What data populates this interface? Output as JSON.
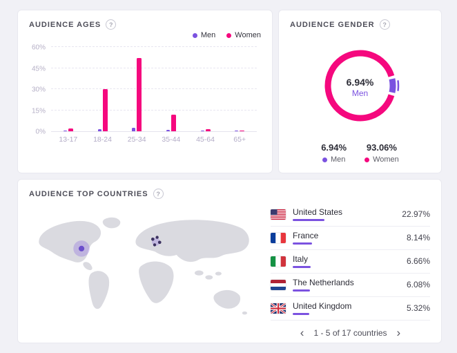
{
  "colors": {
    "men": "#7b52e0",
    "women": "#f5087e",
    "page_bg": "#f1f1f6",
    "panel_border": "#e8e8ef",
    "map_land": "#dadae0"
  },
  "icons": {
    "help": "?"
  },
  "panels": {
    "ages": {
      "title": "AUDIENCE AGES"
    },
    "gender": {
      "title": "AUDIENCE GENDER",
      "center_value": "6.94%",
      "center_label": "Men",
      "stats": [
        {
          "value": "6.94%",
          "label": "Men",
          "color": "#7b52e0"
        },
        {
          "value": "93.06%",
          "label": "Women",
          "color": "#f5087e"
        }
      ]
    },
    "countries": {
      "title": "AUDIENCE TOP COUNTRIES",
      "rows": [
        {
          "flag": "us",
          "name": "United States",
          "value": "22.97%",
          "pct": 22.97
        },
        {
          "flag": "fr",
          "name": "France",
          "value": "8.14%",
          "pct": 8.14
        },
        {
          "flag": "it",
          "name": "Italy",
          "value": "6.66%",
          "pct": 6.66
        },
        {
          "flag": "nl",
          "name": "The Netherlands",
          "value": "6.08%",
          "pct": 6.08
        },
        {
          "flag": "gb",
          "name": "United Kingdom",
          "value": "5.32%",
          "pct": 5.32
        }
      ],
      "pagination": {
        "prev": "‹",
        "label": "1 - 5 of 17 countries",
        "next": "›"
      }
    }
  },
  "chart_data": [
    {
      "type": "bar",
      "title": "Audience Ages",
      "categories": [
        "13-17",
        "18-24",
        "25-34",
        "35-44",
        "45-64",
        "65+"
      ],
      "series": [
        {
          "name": "Men",
          "color": "#7b52e0",
          "values": [
            0.4,
            1.5,
            2.5,
            1.2,
            0.4,
            0.1
          ]
        },
        {
          "name": "Women",
          "color": "#f5087e",
          "values": [
            2,
            30,
            52,
            12,
            1.5,
            0.3
          ]
        }
      ],
      "yticks": [
        "0%",
        "15%",
        "30%",
        "45%",
        "60%"
      ],
      "ylim": [
        0,
        60
      ],
      "grid": "dashed-horizontal",
      "legend_position": "top-right"
    },
    {
      "type": "pie",
      "title": "Audience Gender",
      "slices": [
        {
          "label": "Men",
          "value": 6.94,
          "color": "#7b52e0"
        },
        {
          "label": "Women",
          "value": 93.06,
          "color": "#f5087e"
        }
      ],
      "center_text": [
        "6.94%",
        "Men"
      ]
    },
    {
      "type": "table",
      "title": "Audience Top Countries",
      "categories": [
        "United States",
        "France",
        "Italy",
        "The Netherlands",
        "United Kingdom"
      ],
      "values": [
        22.97,
        8.14,
        6.66,
        6.08,
        5.32
      ],
      "note": "1 - 5 of 17 countries"
    }
  ]
}
